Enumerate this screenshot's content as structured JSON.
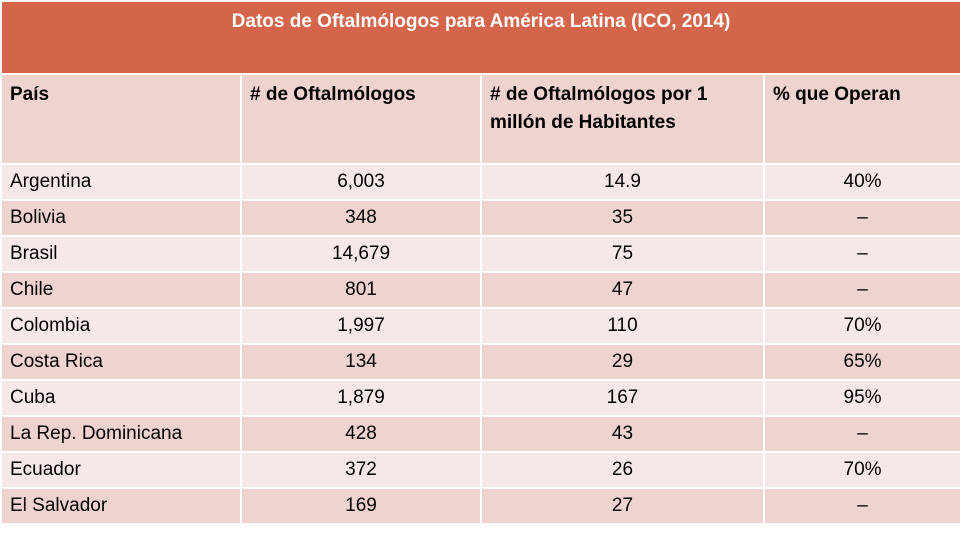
{
  "table": {
    "title": "Datos de Oftalmólogos para América Latina (ICO, 2014)",
    "headers": [
      "País",
      "# de Oftalmólogos",
      "# de Oftalmólogos por 1 millón de Habitantes",
      "% que Operan"
    ],
    "rows": [
      [
        "Argentina",
        "6,003",
        "14.9",
        "40%"
      ],
      [
        "Bolivia",
        "348",
        "35",
        "–"
      ],
      [
        "Brasil",
        "14,679",
        "75",
        "–"
      ],
      [
        "Chile",
        "801",
        "47",
        "–"
      ],
      [
        "Colombia",
        "1,997",
        "110",
        "70%"
      ],
      [
        "Costa Rica",
        "134",
        "29",
        "65%"
      ],
      [
        "Cuba",
        "1,879",
        "167",
        "95%"
      ],
      [
        "La Rep. Dominicana",
        "428",
        "43",
        "–"
      ],
      [
        "Ecuador",
        "372",
        "26",
        "70%"
      ],
      [
        "El Salvador",
        "169",
        "27",
        "–"
      ]
    ]
  },
  "colors": {
    "title_background": "#d4644a",
    "header_background": "#efd3cf",
    "row_light": "#f6e8e6",
    "row_dark": "#efd3cf"
  }
}
